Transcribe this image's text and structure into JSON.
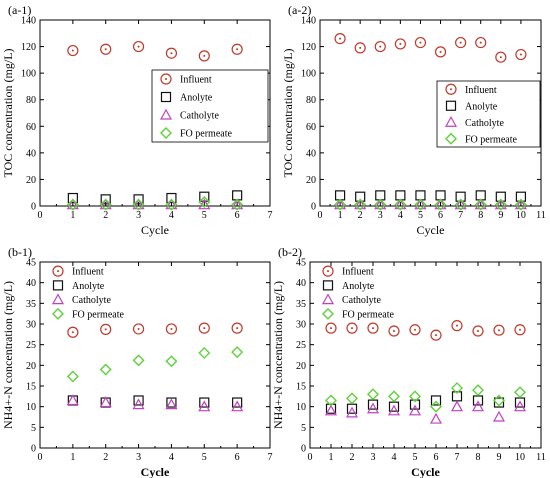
{
  "figure": {
    "shared_legend": [
      "Influent",
      "Anolyte",
      "Catholyte",
      "FO permeate"
    ],
    "series_colors": {
      "Influent": "#c0392b",
      "Anolyte": "#111111",
      "Catholyte": "#c040c0",
      "FO permeate": "#5fd13a"
    }
  },
  "chart_data": [
    {
      "panel_label": "(a-1)",
      "type": "scatter",
      "xlabel": "Cycle",
      "ylabel": "TOC concentration (mg/L)",
      "xlim": [
        0,
        7
      ],
      "ylim": [
        0,
        140
      ],
      "xticks": [
        0,
        1,
        2,
        3,
        4,
        5,
        6,
        7
      ],
      "yticks": [
        0,
        20,
        40,
        60,
        80,
        100,
        120,
        140
      ],
      "legend": "right",
      "x": [
        1,
        2,
        3,
        4,
        5,
        6
      ],
      "series": [
        {
          "name": "Influent",
          "marker": "circle",
          "values": [
            117,
            118,
            120,
            115,
            113,
            118
          ]
        },
        {
          "name": "Anolyte",
          "marker": "square",
          "values": [
            6,
            5,
            5,
            6,
            7,
            8
          ]
        },
        {
          "name": "Catholyte",
          "marker": "triangle",
          "values": [
            1,
            1,
            1,
            1,
            1,
            1
          ]
        },
        {
          "name": "FO permeate",
          "marker": "diamond",
          "values": [
            1,
            1,
            1,
            1,
            3,
            1
          ]
        }
      ]
    },
    {
      "panel_label": "(a-2)",
      "type": "scatter",
      "xlabel": "Cycle",
      "ylabel": "TOC concentration (mg/L)",
      "xlim": [
        0,
        11
      ],
      "ylim": [
        0,
        140
      ],
      "xticks": [
        0,
        1,
        2,
        3,
        4,
        5,
        6,
        7,
        8,
        9,
        10,
        11
      ],
      "yticks": [
        0,
        20,
        40,
        60,
        80,
        100,
        120,
        140
      ],
      "legend": "right",
      "x": [
        1,
        2,
        3,
        4,
        5,
        6,
        7,
        8,
        9,
        10
      ],
      "series": [
        {
          "name": "Influent",
          "marker": "circle",
          "values": [
            126,
            119,
            120,
            122,
            123,
            116,
            123,
            123,
            112,
            114
          ]
        },
        {
          "name": "Anolyte",
          "marker": "square",
          "values": [
            8,
            7,
            8,
            8,
            8,
            8,
            7,
            8,
            7,
            7
          ]
        },
        {
          "name": "Catholyte",
          "marker": "triangle",
          "values": [
            1,
            1,
            1,
            1,
            1,
            1,
            1,
            1,
            1,
            1
          ]
        },
        {
          "name": "FO permeate",
          "marker": "diamond",
          "values": [
            1,
            1,
            1,
            1,
            1,
            1,
            1,
            1,
            1,
            1
          ]
        }
      ]
    },
    {
      "panel_label": "(b-1)",
      "type": "scatter",
      "xlabel": "Cycle",
      "ylabel": "NH4+-N concentration (mg/L)",
      "xlim": [
        0,
        7
      ],
      "ylim": [
        0,
        45
      ],
      "xticks": [
        0,
        1,
        2,
        3,
        4,
        5,
        6,
        7
      ],
      "yticks": [
        0,
        5,
        10,
        15,
        20,
        25,
        30,
        35,
        40,
        45
      ],
      "legend": "top-left",
      "x": [
        1,
        2,
        3,
        4,
        5,
        6
      ],
      "series": [
        {
          "name": "Influent",
          "marker": "circle",
          "values": [
            28,
            28.7,
            28.8,
            28.8,
            29,
            29
          ]
        },
        {
          "name": "Anolyte",
          "marker": "square",
          "values": [
            11.5,
            11,
            11.5,
            11,
            11,
            11
          ]
        },
        {
          "name": "Catholyte",
          "marker": "triangle",
          "values": [
            11.5,
            11,
            10.5,
            10.5,
            10,
            10
          ]
        },
        {
          "name": "FO permeate",
          "marker": "diamond",
          "values": [
            17.3,
            19,
            21.2,
            21,
            23,
            23.2
          ]
        }
      ]
    },
    {
      "panel_label": "(b-2)",
      "type": "scatter",
      "xlabel": "Cycle",
      "ylabel": "NH4+-N concentration (mg/L)",
      "xlim": [
        0,
        11
      ],
      "ylim": [
        0,
        45
      ],
      "xticks": [
        0,
        1,
        2,
        3,
        4,
        5,
        6,
        7,
        8,
        9,
        10,
        11
      ],
      "yticks": [
        0,
        5,
        10,
        15,
        20,
        25,
        30,
        35,
        40,
        45
      ],
      "legend": "top-left",
      "x": [
        1,
        2,
        3,
        4,
        5,
        6,
        7,
        8,
        9,
        10
      ],
      "series": [
        {
          "name": "Influent",
          "marker": "circle",
          "values": [
            29,
            29,
            29,
            28.3,
            28.6,
            27.3,
            29.6,
            28.3,
            28.5,
            28.6
          ]
        },
        {
          "name": "Anolyte",
          "marker": "square",
          "values": [
            9.5,
            9.5,
            10.5,
            10,
            10.5,
            11.5,
            12.5,
            11.5,
            11,
            11
          ]
        },
        {
          "name": "Catholyte",
          "marker": "triangle",
          "values": [
            9,
            8.5,
            9.5,
            9,
            9,
            7,
            10,
            10,
            7.5,
            10
          ]
        },
        {
          "name": "FO permeate",
          "marker": "diamond",
          "values": [
            11.5,
            12,
            13,
            12.5,
            12.5,
            10,
            14.5,
            14,
            11.5,
            13.5
          ]
        }
      ]
    }
  ]
}
